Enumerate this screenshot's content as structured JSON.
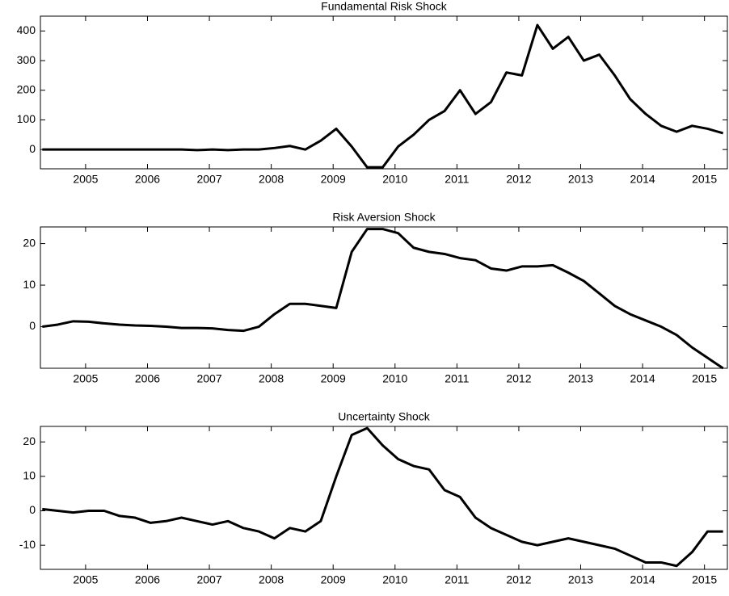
{
  "chart_data": [
    {
      "type": "line",
      "title": "Fundamental Risk Shock",
      "color": "#000000",
      "x": [
        2004.3,
        2004.55,
        2004.8,
        2005.05,
        2005.3,
        2005.55,
        2005.8,
        2006.05,
        2006.3,
        2006.55,
        2006.8,
        2007.05,
        2007.3,
        2007.55,
        2007.8,
        2008.05,
        2008.3,
        2008.55,
        2008.8,
        2009.05,
        2009.3,
        2009.55,
        2009.8,
        2010.05,
        2010.3,
        2010.55,
        2010.8,
        2011.05,
        2011.3,
        2011.55,
        2011.8,
        2012.05,
        2012.3,
        2012.55,
        2012.8,
        2013.05,
        2013.3,
        2013.55,
        2013.8,
        2014.05,
        2014.3,
        2014.55,
        2014.8,
        2015.05,
        2015.3
      ],
      "values": [
        0,
        0,
        0,
        0,
        0,
        0,
        0,
        0,
        0,
        0,
        -2,
        0,
        -2,
        0,
        0,
        5,
        12,
        0,
        30,
        70,
        10,
        -60,
        -60,
        10,
        50,
        100,
        130,
        200,
        120,
        160,
        260,
        250,
        420,
        340,
        380,
        300,
        320,
        250,
        170,
        120,
        80,
        60,
        80,
        70,
        55
      ],
      "xlim": [
        2004.27,
        2015.37
      ],
      "xticks": [
        2005,
        2006,
        2007,
        2008,
        2009,
        2010,
        2011,
        2012,
        2013,
        2014,
        2015
      ],
      "ylim": [
        -65,
        450
      ],
      "yticks": [
        0,
        100,
        200,
        300,
        400
      ]
    },
    {
      "type": "line",
      "title": "Risk Aversion Shock",
      "color": "#000000",
      "x": [
        2004.3,
        2004.55,
        2004.8,
        2005.05,
        2005.3,
        2005.55,
        2005.8,
        2006.05,
        2006.3,
        2006.55,
        2006.8,
        2007.05,
        2007.3,
        2007.55,
        2007.8,
        2008.05,
        2008.3,
        2008.55,
        2008.8,
        2009.05,
        2009.3,
        2009.55,
        2009.8,
        2010.05,
        2010.3,
        2010.55,
        2010.8,
        2011.05,
        2011.3,
        2011.55,
        2011.8,
        2012.05,
        2012.3,
        2012.55,
        2012.8,
        2013.05,
        2013.3,
        2013.55,
        2013.8,
        2014.05,
        2014.3,
        2014.55,
        2014.8,
        2015.05,
        2015.3
      ],
      "values": [
        0,
        0.5,
        1.3,
        1.2,
        0.8,
        0.5,
        0.3,
        0.2,
        0,
        -0.3,
        -0.3,
        -0.4,
        -0.8,
        -1,
        0,
        3,
        5.5,
        5.5,
        5,
        4.5,
        18,
        23.5,
        23.5,
        22.5,
        19,
        18,
        17.5,
        16.5,
        16,
        14,
        13.5,
        14.5,
        14.5,
        14.8,
        13,
        11,
        8,
        5,
        3,
        1.5,
        0,
        -2,
        -5,
        -7.5,
        -10
      ],
      "xlim": [
        2004.27,
        2015.37
      ],
      "xticks": [
        2005,
        2006,
        2007,
        2008,
        2009,
        2010,
        2011,
        2012,
        2013,
        2014,
        2015
      ],
      "ylim": [
        -10,
        24
      ],
      "yticks": [
        0,
        10,
        20
      ]
    },
    {
      "type": "line",
      "title": "Uncertainty Shock",
      "color": "#000000",
      "x": [
        2004.3,
        2004.55,
        2004.8,
        2005.05,
        2005.3,
        2005.55,
        2005.8,
        2006.05,
        2006.3,
        2006.55,
        2006.8,
        2007.05,
        2007.3,
        2007.55,
        2007.8,
        2008.05,
        2008.3,
        2008.55,
        2008.8,
        2009.05,
        2009.3,
        2009.55,
        2009.8,
        2010.05,
        2010.3,
        2010.55,
        2010.8,
        2011.05,
        2011.3,
        2011.55,
        2011.8,
        2012.05,
        2012.3,
        2012.55,
        2012.8,
        2013.05,
        2013.3,
        2013.55,
        2013.8,
        2014.05,
        2014.3,
        2014.55,
        2014.8,
        2015.05,
        2015.3
      ],
      "values": [
        0.5,
        0,
        -0.5,
        0,
        0,
        -1.5,
        -2,
        -3.5,
        -3,
        -2,
        -3,
        -4,
        -3,
        -5,
        -6,
        -8,
        -5,
        -6,
        -3,
        10,
        22,
        24,
        19,
        15,
        13,
        12,
        6,
        4,
        -2,
        -5,
        -7,
        -9,
        -10,
        -9,
        -8,
        -9,
        -10,
        -11,
        -13,
        -15,
        -15,
        -16,
        -12,
        -6,
        -6
      ],
      "xlim": [
        2004.27,
        2015.37
      ],
      "xticks": [
        2005,
        2006,
        2007,
        2008,
        2009,
        2010,
        2011,
        2012,
        2013,
        2014,
        2015
      ],
      "ylim": [
        -17,
        24.5
      ],
      "yticks": [
        -10,
        0,
        10,
        20
      ]
    }
  ]
}
